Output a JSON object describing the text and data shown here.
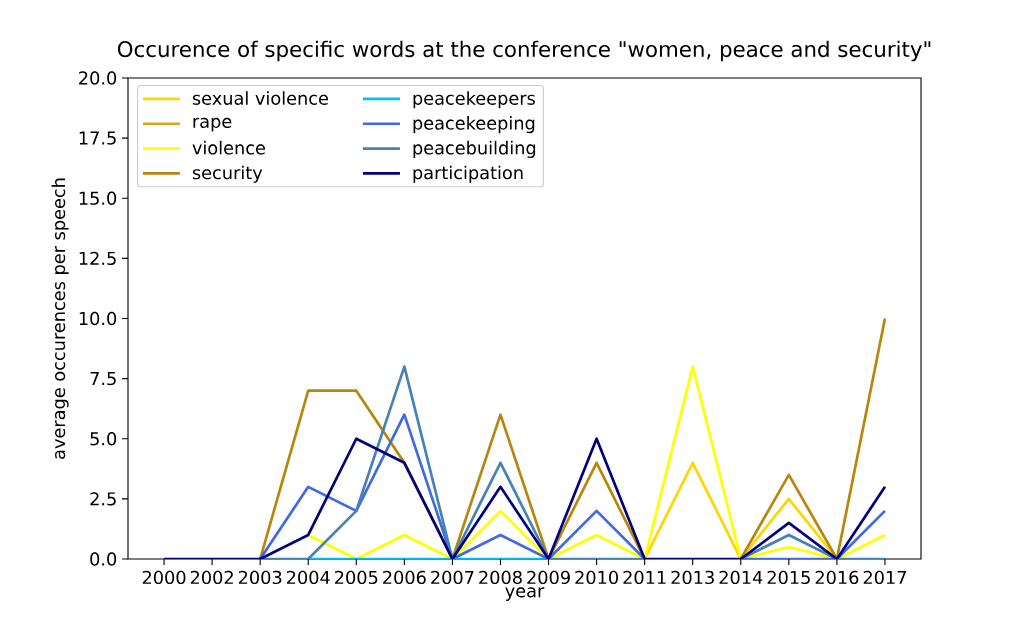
{
  "chart_data": {
    "type": "line",
    "title": "Occurence of specific words at the conference \"women, peace and security\"",
    "xlabel": "year",
    "ylabel": "average occurences per speech",
    "categories": [
      "2000",
      "2002",
      "2003",
      "2004",
      "2005",
      "2006",
      "2007",
      "2008",
      "2009",
      "2010",
      "2011",
      "2013",
      "2014",
      "2015",
      "2016",
      "2017"
    ],
    "ylim": [
      0,
      20
    ],
    "yticks": [
      {
        "value": 0,
        "label": "0.0"
      },
      {
        "value": 2.5,
        "label": "2.5"
      },
      {
        "value": 5,
        "label": "5.0"
      },
      {
        "value": 7.5,
        "label": "7.5"
      },
      {
        "value": 10,
        "label": "10.0"
      },
      {
        "value": 12.5,
        "label": "12.5"
      },
      {
        "value": 15,
        "label": "15.0"
      },
      {
        "value": 17.5,
        "label": "17.5"
      },
      {
        "value": 20,
        "label": "20.0"
      }
    ],
    "legend": "top left",
    "series": [
      {
        "name": "sexual violence",
        "color": "#ffd700",
        "values": [
          null,
          null,
          null,
          null,
          null,
          null,
          null,
          null,
          null,
          null,
          0,
          4,
          0,
          2.5,
          0,
          null
        ]
      },
      {
        "name": "rape",
        "color": "#daa520",
        "values": [
          null,
          null,
          null,
          null,
          null,
          null,
          null,
          null,
          null,
          null,
          null,
          null,
          null,
          null,
          null,
          null
        ]
      },
      {
        "name": "violence",
        "color": "#ffff00",
        "values": [
          null,
          null,
          null,
          1,
          0,
          1,
          0,
          2,
          0,
          1,
          0,
          8,
          0,
          0.5,
          0,
          1
        ]
      },
      {
        "name": "security",
        "color": "#b8860b",
        "values": [
          null,
          null,
          0,
          7,
          7,
          4,
          0,
          6,
          0,
          4,
          0,
          null,
          0,
          3.5,
          0,
          10
        ]
      },
      {
        "name": "peacekeepers",
        "color": "#00bfff",
        "values": [
          null,
          null,
          null,
          0,
          0,
          0,
          0,
          0,
          0,
          null,
          null,
          null,
          null,
          null,
          null,
          null
        ]
      },
      {
        "name": "peacekeeping",
        "color": "#4169e1",
        "values": [
          null,
          null,
          0,
          3,
          2,
          6,
          0,
          1,
          0,
          2,
          0,
          null,
          0,
          0,
          0,
          2
        ]
      },
      {
        "name": "peacebuilding",
        "color": "#4682b4",
        "values": [
          null,
          null,
          0,
          0,
          2,
          8,
          0,
          4,
          0,
          0,
          0,
          null,
          0,
          1,
          0,
          0
        ]
      },
      {
        "name": "participation",
        "color": "#000080",
        "values": [
          0,
          0,
          0,
          1,
          5,
          4,
          0,
          3,
          0,
          5,
          0,
          0,
          0,
          1.5,
          0,
          3
        ]
      }
    ]
  }
}
